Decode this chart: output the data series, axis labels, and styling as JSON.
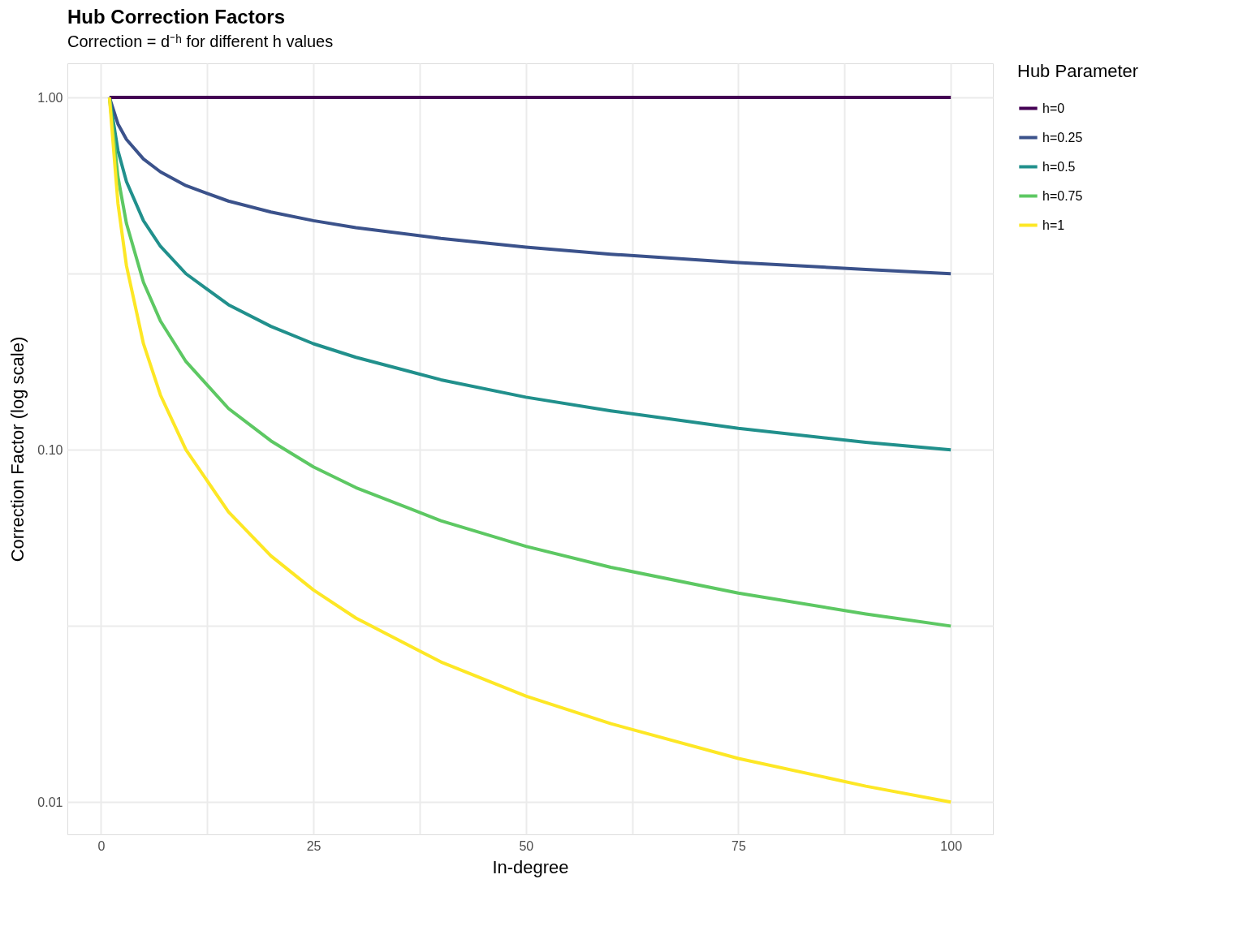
{
  "chart_data": {
    "type": "line",
    "title": "Hub Correction Factors",
    "subtitle": "Correction = d⁻ʰ for different h values",
    "xlabel": "In-degree",
    "ylabel": "Correction Factor (log scale)",
    "legend_title": "Hub Parameter",
    "x": [
      1,
      2,
      3,
      5,
      7,
      10,
      15,
      20,
      25,
      30,
      40,
      50,
      60,
      75,
      90,
      100
    ],
    "series": [
      {
        "name": "h=0",
        "color": "#440154",
        "values": [
          1,
          1,
          1,
          1,
          1,
          1,
          1,
          1,
          1,
          1,
          1,
          1,
          1,
          1,
          1,
          1
        ]
      },
      {
        "name": "h=0.25",
        "color": "#3b528b",
        "values": [
          1,
          0.841,
          0.76,
          0.669,
          0.615,
          0.562,
          0.508,
          0.473,
          0.447,
          0.427,
          0.398,
          0.376,
          0.359,
          0.34,
          0.325,
          0.316
        ]
      },
      {
        "name": "h=0.5",
        "color": "#21908c",
        "values": [
          1,
          0.707,
          0.577,
          0.447,
          0.378,
          0.316,
          0.258,
          0.224,
          0.2,
          0.183,
          0.158,
          0.141,
          0.129,
          0.115,
          0.105,
          0.1
        ]
      },
      {
        "name": "h=0.75",
        "color": "#5dc863",
        "values": [
          1,
          0.595,
          0.439,
          0.299,
          0.232,
          0.178,
          0.131,
          0.106,
          0.0894,
          0.0781,
          0.0629,
          0.0532,
          0.0464,
          0.0392,
          0.0342,
          0.0316
        ]
      },
      {
        "name": "h=1",
        "color": "#fde725",
        "values": [
          1,
          0.5,
          0.333,
          0.2,
          0.143,
          0.1,
          0.0667,
          0.05,
          0.04,
          0.0333,
          0.025,
          0.02,
          0.0167,
          0.0133,
          0.0111,
          0.01
        ]
      }
    ],
    "xlim": [
      -3.95,
      104.95
    ],
    "xticks": [
      0,
      25,
      50,
      75,
      100,
      {
        "value": 12.5,
        "label": null
      },
      {
        "value": 37.5,
        "label": null
      },
      {
        "value": 62.5,
        "label": null
      },
      {
        "value": 87.5,
        "label": null
      }
    ],
    "ylim": [
      0.0081,
      1.25
    ],
    "yticks": [
      {
        "value": 1,
        "label": "1.00"
      },
      {
        "value": 0.1,
        "label": "0.10"
      },
      {
        "value": 0.01,
        "label": "0.01"
      },
      {
        "value": 0.316,
        "label": null
      },
      {
        "value": 0.0316,
        "label": null
      }
    ],
    "log": "y",
    "grid": true,
    "legend": "right",
    "line_style": "solid",
    "marker": "none"
  }
}
